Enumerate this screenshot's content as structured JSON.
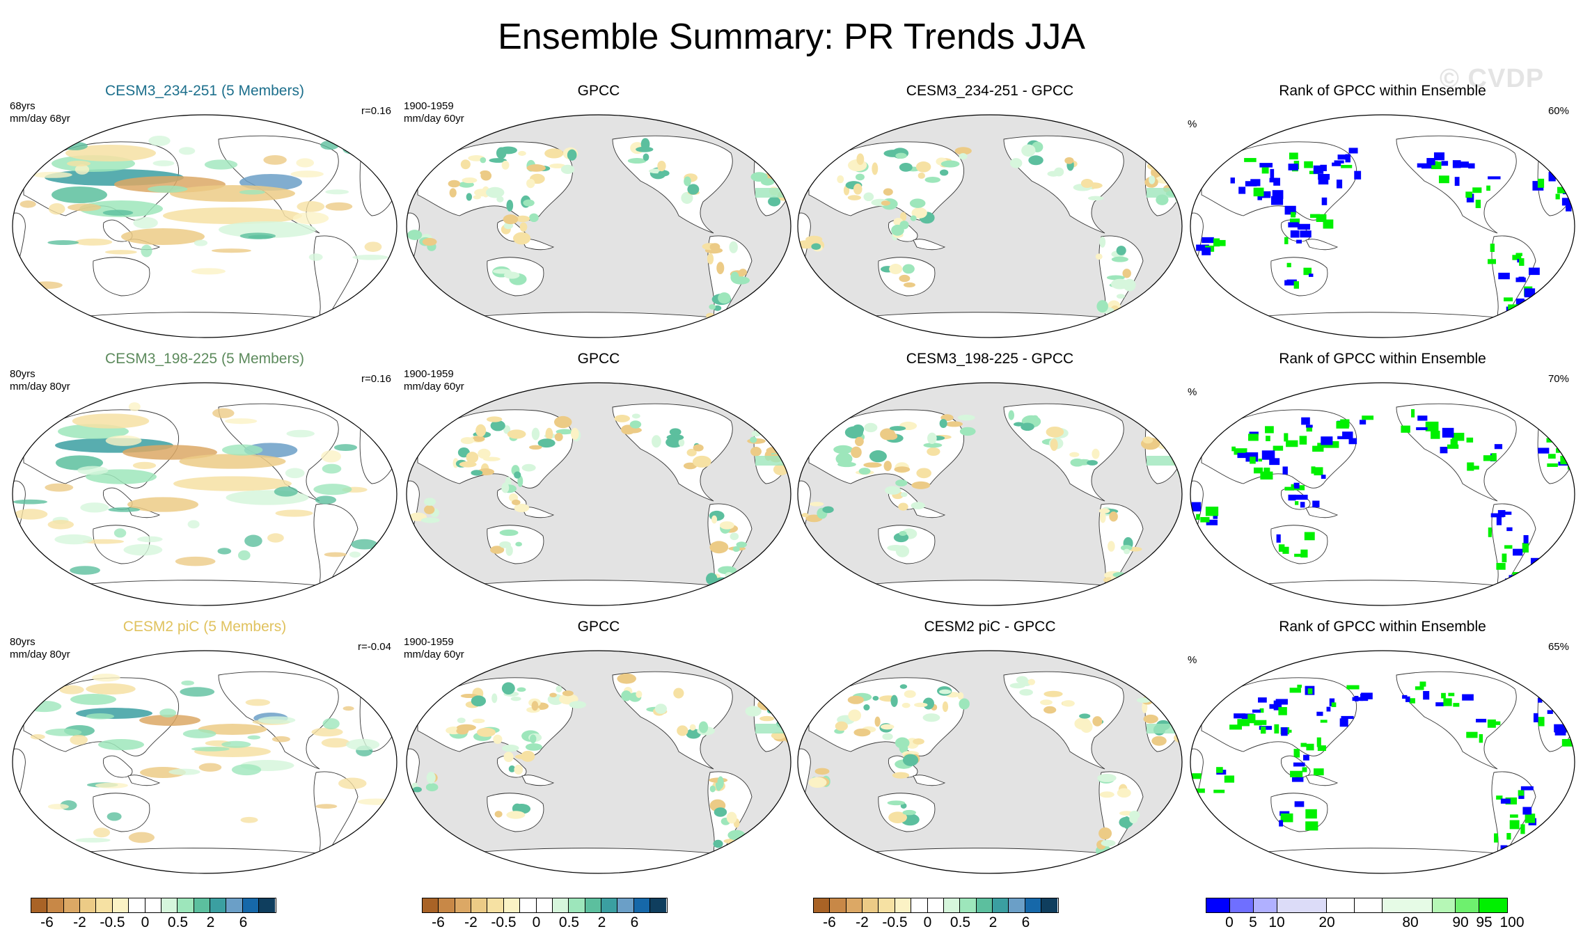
{
  "page": {
    "title": "Ensemble Summary: PR Trends JJA",
    "watermark": "© CVDP"
  },
  "colors": {
    "trend_palette": [
      "#a96326",
      "#c88847",
      "#dca865",
      "#eccb86",
      "#f6e1a3",
      "#fbf2c5",
      "#ffffff",
      "#ffffff",
      "#d6f6dc",
      "#9de6bb",
      "#5cbf9e",
      "#3b9fa1",
      "#6b9fc7",
      "#1668a9",
      "#0f3e5e"
    ],
    "rank_palette": [
      "#0000ff",
      "#6f6fff",
      "#b0b0ff",
      "#dcdcf8",
      "#ffffff",
      "#ffffff",
      "#e6fbe6",
      "#b6f7b6",
      "#6ef06e",
      "#00f000"
    ],
    "land_gray": "#e3e3e3",
    "title_row1": "#1c6f8c",
    "title_row2": "#5c8a5c",
    "title_row3": "#e0c25e"
  },
  "rows": [
    {
      "panels": [
        {
          "kind": "model",
          "title": "CESM3_234-251 (5 Members)",
          "left_note1": "68yrs",
          "left_note2": "mm/day 68yr",
          "right_note": "r=0.16",
          "title_color": "#1c6f8c"
        },
        {
          "kind": "obs",
          "title": "GPCC",
          "left_note1": "1900-1959",
          "left_note2": "mm/day 60yr",
          "right_note": ""
        },
        {
          "kind": "diff",
          "title": "CESM3_234-251 - GPCC",
          "left_note1": "",
          "left_note2": "",
          "right_note": ""
        },
        {
          "kind": "rank",
          "title": "Rank of GPCC within Ensemble",
          "left_note1": "%",
          "left_note2": "",
          "right_note": "60%"
        }
      ]
    },
    {
      "panels": [
        {
          "kind": "model",
          "title": "CESM3_198-225 (5 Members)",
          "left_note1": "80yrs",
          "left_note2": "mm/day 80yr",
          "right_note": "r=0.16",
          "title_color": "#5c8a5c"
        },
        {
          "kind": "obs",
          "title": "GPCC",
          "left_note1": "1900-1959",
          "left_note2": "mm/day 60yr",
          "right_note": ""
        },
        {
          "kind": "diff",
          "title": "CESM3_198-225 - GPCC",
          "left_note1": "",
          "left_note2": "",
          "right_note": ""
        },
        {
          "kind": "rank",
          "title": "Rank of GPCC within Ensemble",
          "left_note1": "%",
          "left_note2": "",
          "right_note": "70%"
        }
      ]
    },
    {
      "panels": [
        {
          "kind": "model",
          "title": "CESM2 piC (5 Members)",
          "left_note1": "80yrs",
          "left_note2": "mm/day 80yr",
          "right_note": "r=-0.04",
          "title_color": "#e0c25e"
        },
        {
          "kind": "obs",
          "title": "GPCC",
          "left_note1": "1900-1959",
          "left_note2": "mm/day 60yr",
          "right_note": ""
        },
        {
          "kind": "diff",
          "title": "CESM2 piC - GPCC",
          "left_note1": "",
          "left_note2": "",
          "right_note": ""
        },
        {
          "kind": "rank",
          "title": "Rank of GPCC within Ensemble",
          "left_note1": "%",
          "left_note2": "",
          "right_note": "65%"
        }
      ]
    }
  ],
  "colorbars": {
    "trend_ticks": [
      "-6",
      "-2",
      "-0.5",
      "0",
      "0.5",
      "2",
      "6"
    ],
    "rank_ticks": [
      "0",
      "5",
      "10",
      "20",
      "80",
      "90",
      "95",
      "100"
    ]
  },
  "chart_data": {
    "type": "heatmap",
    "title": "Ensemble Summary: PR Trends JJA",
    "projection": "global map (Pacific-centered)",
    "variable": "precipitation trend (mm/day)",
    "season": "JJA",
    "rows": [
      "CESM3_234-251 (5 Members)",
      "CESM3_198-225 (5 Members)",
      "CESM2 piC (5 Members)"
    ],
    "columns": [
      "Ensemble mean trend",
      "GPCC",
      "Model - GPCC",
      "Rank of GPCC within Ensemble"
    ],
    "pattern_correlation": [
      0.16,
      0.16,
      -0.04
    ],
    "rank_summary_percent": [
      60,
      70,
      65
    ],
    "trend_colorbar_levels": [
      -6,
      -2,
      -0.5,
      0,
      0.5,
      2,
      6
    ],
    "rank_colorbar_levels": [
      0,
      5,
      10,
      20,
      80,
      90,
      95,
      100
    ]
  }
}
